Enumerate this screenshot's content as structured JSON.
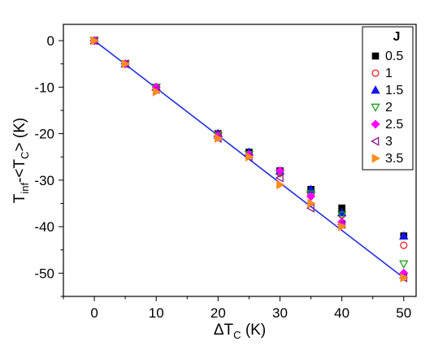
{
  "chart_data": {
    "type": "scatter",
    "xlabel": "ΔT_C (K)",
    "ylabel": "T_inf-<T_C> (K)",
    "xlabel_parts": {
      "main": "ΔT",
      "sub": "C",
      "tail": " (K)"
    },
    "ylabel_parts": {
      "a": "T",
      "a_sub": "inf",
      "b": "-<T",
      "b_sub": "C",
      "c": "> (K)"
    },
    "xlim": [
      -5,
      52
    ],
    "ylim": [
      -55,
      3.5
    ],
    "xticks": [
      0,
      10,
      20,
      30,
      40,
      50
    ],
    "yticks": [
      0,
      -10,
      -20,
      -30,
      -40,
      -50
    ],
    "legend_title": "J",
    "legend_position": "top-right",
    "grid": false,
    "fit_line": {
      "color": "#1f2ee0",
      "points": [
        [
          0,
          0
        ],
        [
          50,
          -51
        ]
      ]
    },
    "series": [
      {
        "name": "0.5",
        "marker": "square",
        "filled": true,
        "color": "#000000",
        "x": [
          0,
          5,
          10,
          20,
          25,
          30,
          35,
          40,
          50
        ],
        "y": [
          0,
          -5,
          -10,
          -20,
          -24,
          -28,
          -32,
          -36,
          -42
        ]
      },
      {
        "name": "1",
        "marker": "circle",
        "filled": false,
        "color": "#e8201e",
        "x": [
          0,
          5,
          10,
          20,
          25,
          30,
          35,
          40,
          50
        ],
        "y": [
          0,
          -5,
          -10,
          -20,
          -24.5,
          -28.5,
          -33,
          -37.5,
          -44
        ]
      },
      {
        "name": "1.5",
        "marker": "triangle-up",
        "filled": true,
        "color": "#1414e8",
        "x": [
          0,
          5,
          10,
          20,
          25,
          30,
          35,
          40,
          50
        ],
        "y": [
          0,
          -5,
          -10,
          -20,
          -24,
          -28,
          -32,
          -37,
          -42
        ]
      },
      {
        "name": "2",
        "marker": "triangle-down",
        "filled": false,
        "color": "#1e9e1e",
        "x": [
          0,
          5,
          10,
          20,
          25,
          30,
          35,
          40,
          50
        ],
        "y": [
          0,
          -5,
          -10,
          -20.5,
          -24.5,
          -28.5,
          -33,
          -37.5,
          -48
        ]
      },
      {
        "name": "2.5",
        "marker": "diamond",
        "filled": true,
        "color": "#ff00ff",
        "x": [
          0,
          5,
          10,
          20,
          25,
          30,
          35,
          40,
          50
        ],
        "y": [
          0,
          -5,
          -10,
          -20.5,
          -24.5,
          -28,
          -33.5,
          -39,
          -50
        ]
      },
      {
        "name": "3",
        "marker": "triangle-left",
        "filled": false,
        "color": "#8b1a8b",
        "x": [
          0,
          5,
          10,
          20,
          25,
          30,
          35,
          40,
          50
        ],
        "y": [
          0,
          -5,
          -10.5,
          -21,
          -25,
          -29.5,
          -36,
          -39.5,
          -51
        ]
      },
      {
        "name": "3.5",
        "marker": "triangle-right",
        "filled": true,
        "color": "#ff8c1a",
        "x": [
          0,
          5,
          10,
          20,
          25,
          30,
          35,
          40,
          50
        ],
        "y": [
          0,
          -5,
          -11,
          -21,
          -25,
          -31,
          -35,
          -40,
          -51
        ]
      }
    ]
  }
}
